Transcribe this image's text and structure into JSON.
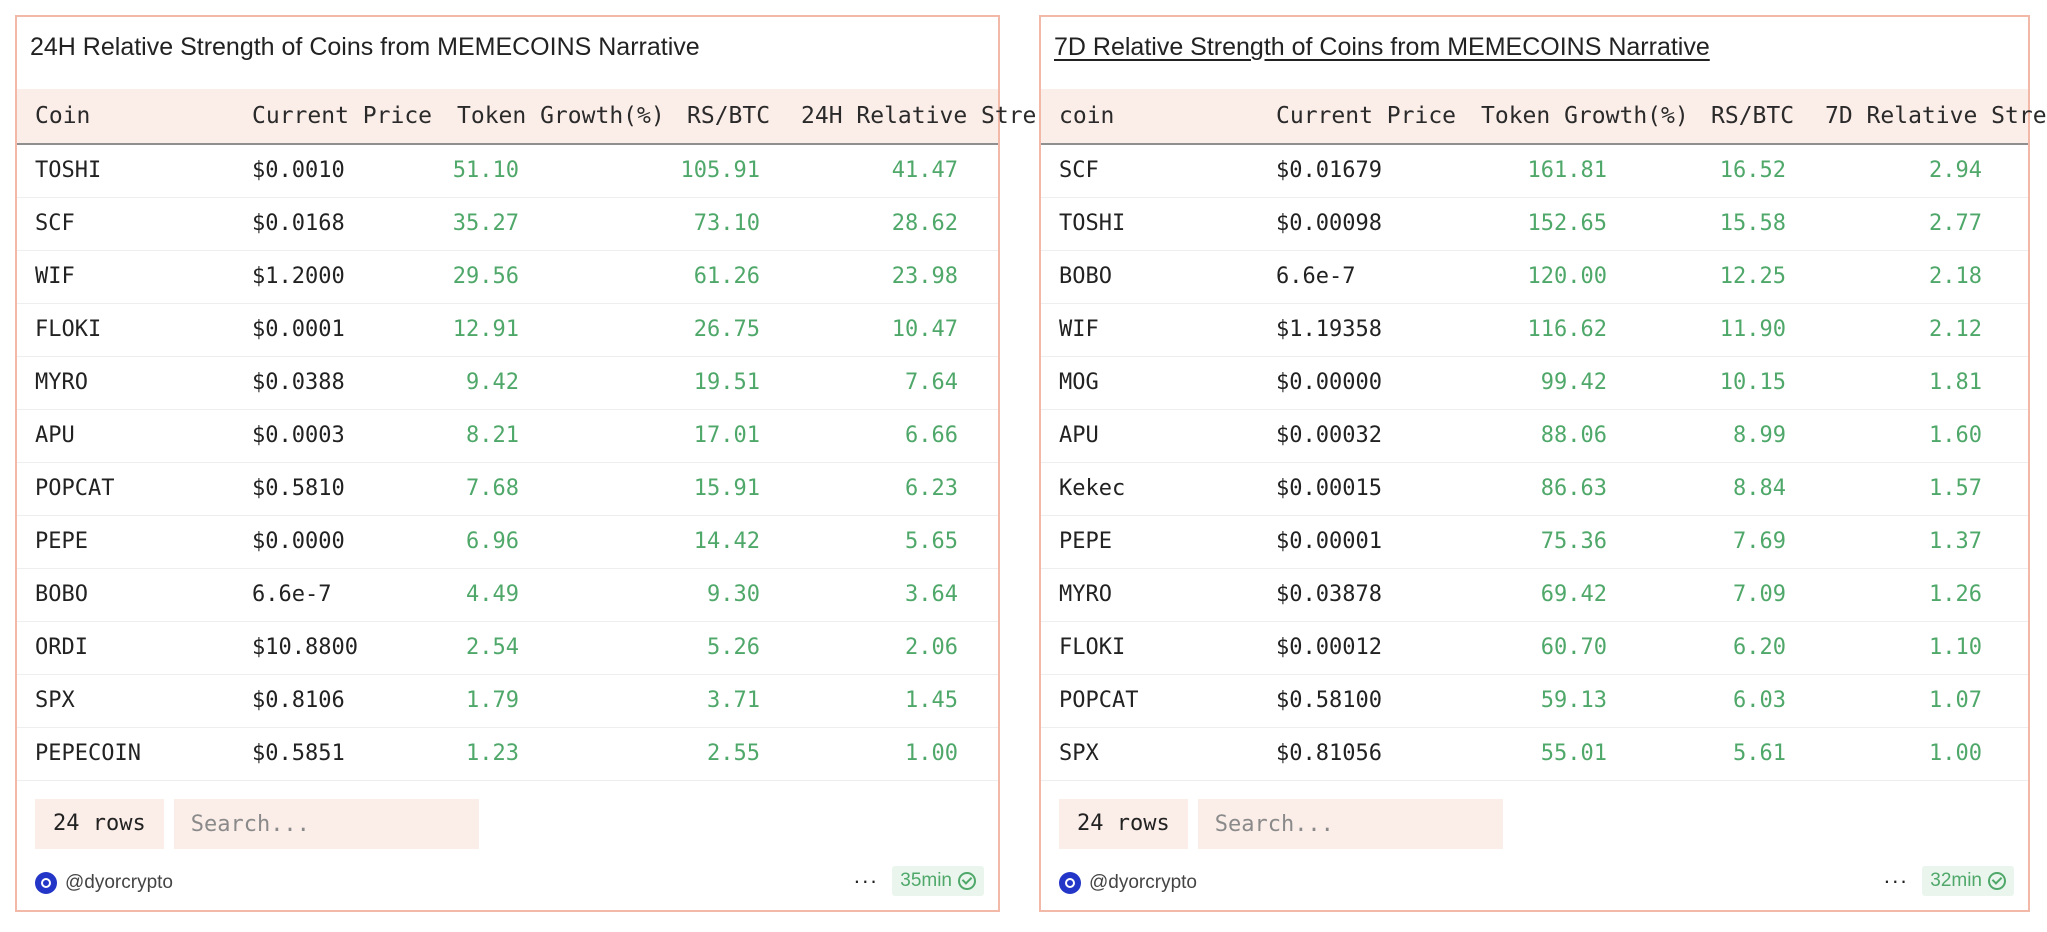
{
  "panels": [
    {
      "title": "24H Relative Strength of Coins from MEMECOINS Narrative",
      "columns": [
        "Coin",
        "Current Price",
        "Token Growth(%)",
        "RS/BTC",
        "24H Relative Stre"
      ],
      "rows": [
        [
          "TOSHI",
          "$0.0010",
          "51.10",
          "105.91",
          "41.47"
        ],
        [
          "SCF",
          "$0.0168",
          "35.27",
          "73.10",
          "28.62"
        ],
        [
          "WIF",
          "$1.2000",
          "29.56",
          "61.26",
          "23.98"
        ],
        [
          "FLOKI",
          "$0.0001",
          "12.91",
          "26.75",
          "10.47"
        ],
        [
          "MYRO",
          "$0.0388",
          "9.42",
          "19.51",
          "7.64"
        ],
        [
          "APU",
          "$0.0003",
          "8.21",
          "17.01",
          "6.66"
        ],
        [
          "POPCAT",
          "$0.5810",
          "7.68",
          "15.91",
          "6.23"
        ],
        [
          "PEPE",
          "$0.0000",
          "6.96",
          "14.42",
          "5.65"
        ],
        [
          "BOBO",
          "6.6e-7",
          "4.49",
          "9.30",
          "3.64"
        ],
        [
          "ORDI",
          "$10.8800",
          "2.54",
          "5.26",
          "2.06"
        ],
        [
          "SPX",
          "$0.8106",
          "1.79",
          "3.71",
          "1.45"
        ],
        [
          "PEPECOIN",
          "$0.5851",
          "1.23",
          "2.55",
          "1.00"
        ]
      ],
      "rows_label": "24 rows",
      "search_placeholder": "Search...",
      "author": "@dyorcrypto",
      "more": "···",
      "age": "35min",
      "icons": {
        "avatar": "dune-avatar-icon",
        "more": "more-icon",
        "verified": "check-circle-icon"
      },
      "accent_color": "#4fa86a"
    },
    {
      "title": "7D Relative Strength of Coins from MEMECOINS Narrative",
      "columns": [
        "coin",
        "Current Price",
        "Token Growth(%)",
        "RS/BTC",
        "7D Relative Stre"
      ],
      "rows": [
        [
          "SCF",
          "$0.01679",
          "161.81",
          "16.52",
          "2.94"
        ],
        [
          "TOSHI",
          "$0.00098",
          "152.65",
          "15.58",
          "2.77"
        ],
        [
          "BOBO",
          "6.6e-7",
          "120.00",
          "12.25",
          "2.18"
        ],
        [
          "WIF",
          "$1.19358",
          "116.62",
          "11.90",
          "2.12"
        ],
        [
          "MOG",
          "$0.00000",
          "99.42",
          "10.15",
          "1.81"
        ],
        [
          "APU",
          "$0.00032",
          "88.06",
          "8.99",
          "1.60"
        ],
        [
          "Kekec",
          "$0.00015",
          "86.63",
          "8.84",
          "1.57"
        ],
        [
          "PEPE",
          "$0.00001",
          "75.36",
          "7.69",
          "1.37"
        ],
        [
          "MYRO",
          "$0.03878",
          "69.42",
          "7.09",
          "1.26"
        ],
        [
          "FLOKI",
          "$0.00012",
          "60.70",
          "6.20",
          "1.10"
        ],
        [
          "POPCAT",
          "$0.58100",
          "59.13",
          "6.03",
          "1.07"
        ],
        [
          "SPX",
          "$0.81056",
          "55.01",
          "5.61",
          "1.00"
        ]
      ],
      "rows_label": "24 rows",
      "search_placeholder": "Search...",
      "author": "@dyorcrypto",
      "more": "···",
      "age": "32min",
      "icons": {
        "avatar": "dune-avatar-icon",
        "more": "more-icon",
        "verified": "check-circle-icon"
      },
      "accent_color": "#4fa86a"
    }
  ]
}
